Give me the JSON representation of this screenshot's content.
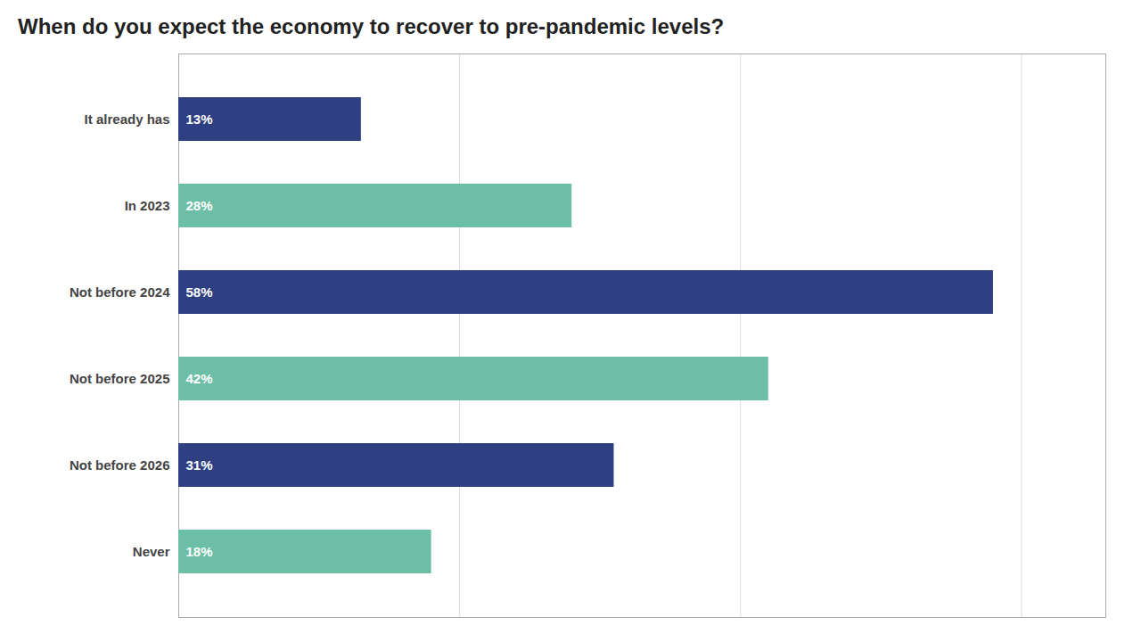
{
  "chart_data": {
    "type": "bar",
    "orientation": "horizontal",
    "title": "When do you expect the economy to recover to pre-pandemic levels?",
    "categories": [
      "It already has",
      "In 2023",
      "Not before 2024",
      "Not before 2025",
      "Not before 2026",
      "Never"
    ],
    "values": [
      13,
      28,
      58,
      42,
      31,
      18
    ],
    "value_labels": [
      "13%",
      "28%",
      "58%",
      "42%",
      "31%",
      "18%"
    ],
    "colors": [
      "#2e3f82",
      "#6cbfa6",
      "#2e3f82",
      "#6cbfa6",
      "#2e3f82",
      "#6cbfa6"
    ],
    "xlim": [
      0,
      66
    ],
    "xticks": [
      0,
      20,
      40,
      60
    ],
    "grid": true,
    "data_labels": true,
    "tick_labels": "y"
  }
}
